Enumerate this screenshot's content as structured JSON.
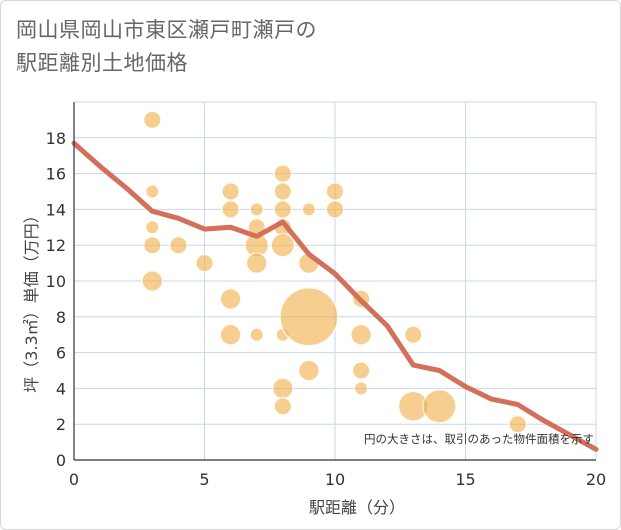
{
  "title_line1": "岡山県岡山市東区瀬戸町瀬戸の",
  "title_line2": "駅距離別土地価格",
  "chart_data": {
    "type": "scatter",
    "title": "岡山県岡山市東区瀬戸町瀬戸の駅距離別土地価格",
    "xlabel": "駅距離（分）",
    "ylabel": "坪（3.3㎡）単価（万円）",
    "xlim": [
      0,
      20
    ],
    "ylim": [
      0,
      20
    ],
    "xticks": [
      0,
      5,
      10,
      15,
      20
    ],
    "yticks": [
      0,
      2,
      4,
      6,
      8,
      10,
      12,
      14,
      16,
      18
    ],
    "grid": true,
    "annotation": "円の大きさは、取引のあった物件面積を示す",
    "colors": {
      "bubble": "#f0b04a",
      "line": "#d2705a",
      "grid": "#c9d7e6",
      "axis": "#333333"
    },
    "bubbles": [
      {
        "x": 3,
        "y": 19,
        "s": 2
      },
      {
        "x": 3,
        "y": 15,
        "s": 1
      },
      {
        "x": 3,
        "y": 13,
        "s": 1
      },
      {
        "x": 3,
        "y": 12,
        "s": 2
      },
      {
        "x": 3,
        "y": 10,
        "s": 3
      },
      {
        "x": 4,
        "y": 12,
        "s": 2
      },
      {
        "x": 5,
        "y": 11,
        "s": 2
      },
      {
        "x": 6,
        "y": 15,
        "s": 2
      },
      {
        "x": 6,
        "y": 14,
        "s": 2
      },
      {
        "x": 6,
        "y": 9,
        "s": 3
      },
      {
        "x": 6,
        "y": 7,
        "s": 3
      },
      {
        "x": 7,
        "y": 14,
        "s": 1
      },
      {
        "x": 7,
        "y": 13,
        "s": 2
      },
      {
        "x": 7,
        "y": 12,
        "s": 4
      },
      {
        "x": 7,
        "y": 11,
        "s": 3
      },
      {
        "x": 7,
        "y": 7,
        "s": 1
      },
      {
        "x": 8,
        "y": 16,
        "s": 2
      },
      {
        "x": 8,
        "y": 15,
        "s": 2
      },
      {
        "x": 8,
        "y": 14,
        "s": 2
      },
      {
        "x": 8,
        "y": 13,
        "s": 2
      },
      {
        "x": 8,
        "y": 12,
        "s": 4
      },
      {
        "x": 8,
        "y": 7,
        "s": 1
      },
      {
        "x": 8,
        "y": 4,
        "s": 3
      },
      {
        "x": 8,
        "y": 3,
        "s": 2
      },
      {
        "x": 9,
        "y": 14,
        "s": 1
      },
      {
        "x": 9,
        "y": 11,
        "s": 3
      },
      {
        "x": 9,
        "y": 8,
        "s": 30
      },
      {
        "x": 9,
        "y": 5,
        "s": 3
      },
      {
        "x": 10,
        "y": 15,
        "s": 2
      },
      {
        "x": 10,
        "y": 14,
        "s": 2
      },
      {
        "x": 11,
        "y": 9,
        "s": 2
      },
      {
        "x": 11,
        "y": 7,
        "s": 3
      },
      {
        "x": 11,
        "y": 5,
        "s": 2
      },
      {
        "x": 11,
        "y": 4,
        "s": 1
      },
      {
        "x": 13,
        "y": 7,
        "s": 2
      },
      {
        "x": 13,
        "y": 3,
        "s": 7
      },
      {
        "x": 14,
        "y": 3,
        "s": 9
      },
      {
        "x": 17,
        "y": 2,
        "s": 2
      }
    ],
    "series": [
      {
        "name": "trend",
        "x": [
          0,
          1,
          2,
          3,
          4,
          5,
          6,
          7,
          8,
          9,
          10,
          11,
          12,
          13,
          14,
          15,
          16,
          17,
          18,
          19,
          20
        ],
        "values": [
          17.7,
          16.4,
          15.2,
          13.9,
          13.5,
          12.9,
          13.0,
          12.5,
          13.3,
          11.5,
          10.4,
          8.9,
          7.5,
          5.3,
          5.0,
          4.1,
          3.4,
          3.1,
          2.2,
          1.4,
          0.6
        ]
      }
    ]
  }
}
